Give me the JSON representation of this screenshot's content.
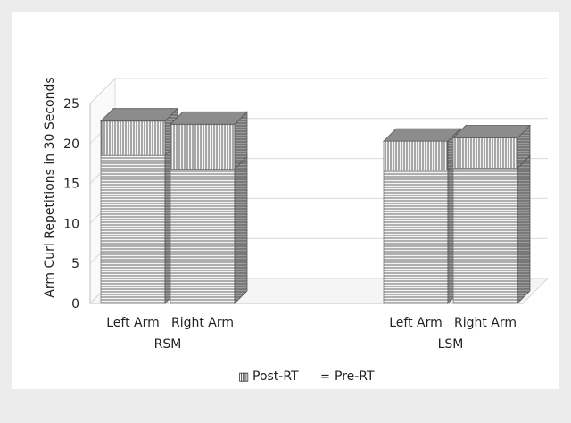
{
  "chart_data": {
    "type": "bar",
    "stacked": true,
    "three_d": true,
    "title": "",
    "xlabel": "",
    "ylabel": "Arm Curl Repetitions in 30 Seconds",
    "ylim": [
      0,
      25
    ],
    "yticks": [
      0,
      5,
      10,
      15,
      20,
      25
    ],
    "grid": true,
    "legend_position": "bottom",
    "groups": [
      "RSM",
      "LSM"
    ],
    "categories": [
      "Left Arm",
      "Right Arm"
    ],
    "series": [
      {
        "name": "Pre-RT",
        "pattern": "horizontal-lines",
        "values": [
          [
            18.5,
            16.8
          ],
          [
            16.7,
            16.9
          ]
        ]
      },
      {
        "name": "Post-RT",
        "pattern": "vertical-lines",
        "values": [
          [
            4.3,
            5.6
          ],
          [
            3.6,
            3.8
          ]
        ]
      }
    ],
    "legend": [
      {
        "series": "Post-RT",
        "symbol": "▥",
        "label": "Post-RT"
      },
      {
        "series": "Pre-RT",
        "symbol": "=",
        "label": "Pre-RT"
      }
    ]
  }
}
